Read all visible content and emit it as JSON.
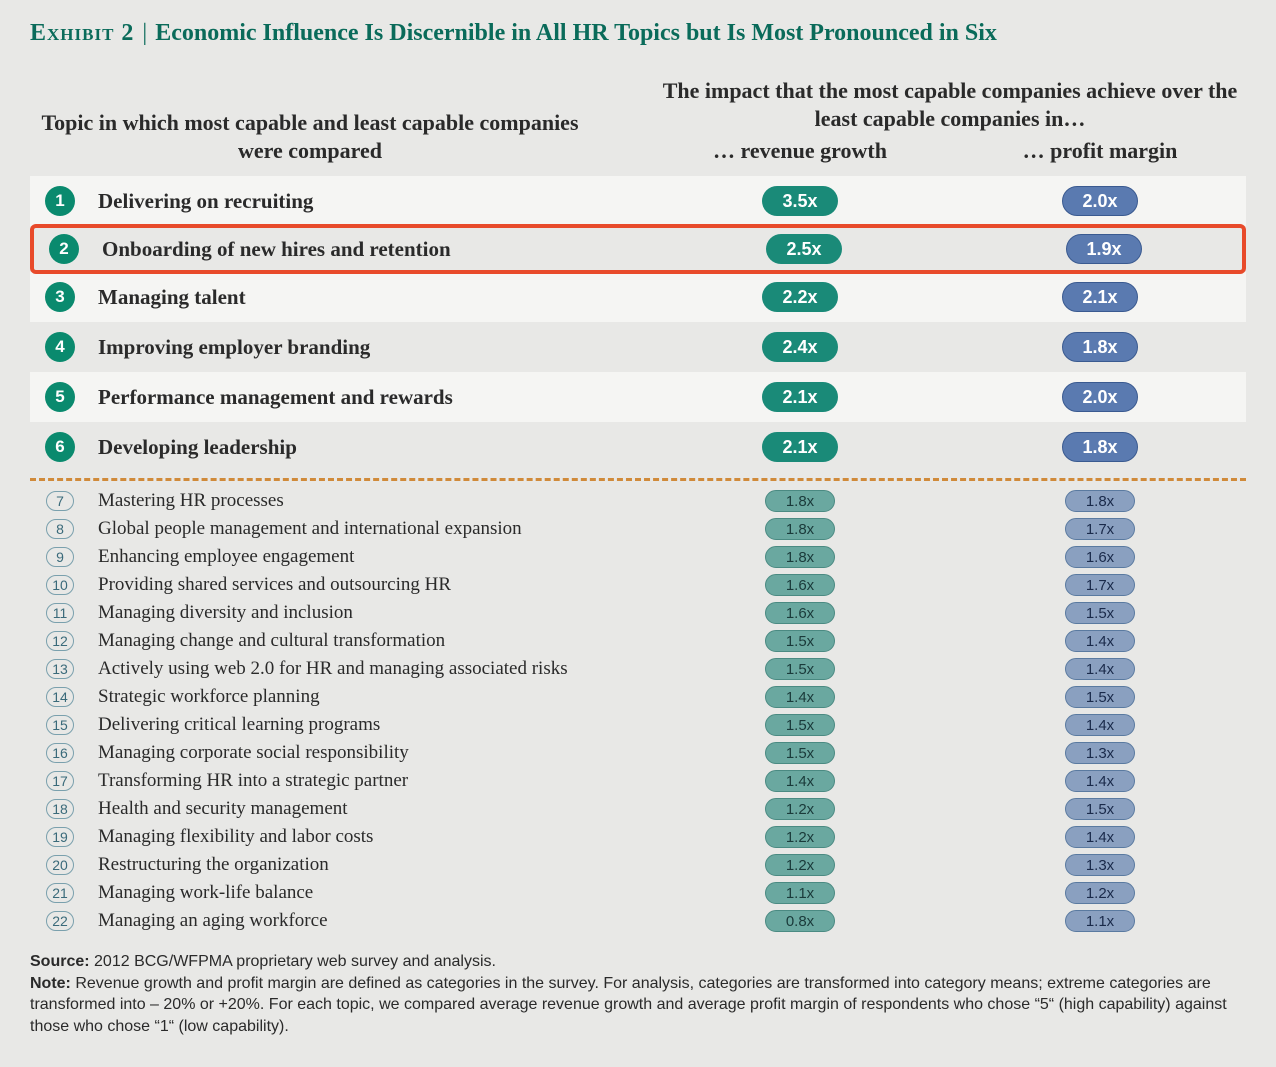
{
  "title": {
    "exhibit_label": "Exhibit 2",
    "text": "Economic Influence Is Discernible in All HR Topics but Is Most Pronounced in Six"
  },
  "headers": {
    "left": "Topic in which most capable and least capable companies were compared",
    "right_top": "The impact that the most capable companies achieve over the least capable companies in…",
    "sub_revenue": "… revenue growth",
    "sub_profit": "… profit margin"
  },
  "colors": {
    "brand_green": "#0a6b5a",
    "badge_green": "#0a8a6e",
    "pill_rev_major": "#1a8a78",
    "pill_rev_minor": "#6aa8a0",
    "pill_prof_major": "#5a7ab0",
    "pill_prof_minor": "#8aa0c0",
    "highlight_border": "#e84a2a",
    "divider": "#d08a3a",
    "row_alt_bg": "#f5f5f3",
    "page_bg": "#e8e8e6"
  },
  "highlight_index": 1,
  "divider_after_index": 5,
  "rows": [
    {
      "n": "1",
      "topic": "Delivering on recruiting",
      "rev": "3.5x",
      "prof": "2.0x",
      "major": true,
      "alt": true
    },
    {
      "n": "2",
      "topic": "Onboarding of new hires and retention",
      "rev": "2.5x",
      "prof": "1.9x",
      "major": true,
      "alt": false
    },
    {
      "n": "3",
      "topic": "Managing talent",
      "rev": "2.2x",
      "prof": "2.1x",
      "major": true,
      "alt": true
    },
    {
      "n": "4",
      "topic": "Improving employer branding",
      "rev": "2.4x",
      "prof": "1.8x",
      "major": true,
      "alt": false
    },
    {
      "n": "5",
      "topic": "Performance management and rewards",
      "rev": "2.1x",
      "prof": "2.0x",
      "major": true,
      "alt": true
    },
    {
      "n": "6",
      "topic": "Developing leadership",
      "rev": "2.1x",
      "prof": "1.8x",
      "major": true,
      "alt": false
    },
    {
      "n": "7",
      "topic": "Mastering HR processes",
      "rev": "1.8x",
      "prof": "1.8x",
      "major": false,
      "alt": false
    },
    {
      "n": "8",
      "topic": "Global people management and international expansion",
      "rev": "1.8x",
      "prof": "1.7x",
      "major": false,
      "alt": false
    },
    {
      "n": "9",
      "topic": "Enhancing employee engagement",
      "rev": "1.8x",
      "prof": "1.6x",
      "major": false,
      "alt": false
    },
    {
      "n": "10",
      "topic": "Providing shared services and outsourcing HR",
      "rev": "1.6x",
      "prof": "1.7x",
      "major": false,
      "alt": false
    },
    {
      "n": "11",
      "topic": "Managing diversity and inclusion",
      "rev": "1.6x",
      "prof": "1.5x",
      "major": false,
      "alt": false
    },
    {
      "n": "12",
      "topic": "Managing change and cultural transformation",
      "rev": "1.5x",
      "prof": "1.4x",
      "major": false,
      "alt": false
    },
    {
      "n": "13",
      "topic": "Actively using web 2.0 for HR and managing associated risks",
      "rev": "1.5x",
      "prof": "1.4x",
      "major": false,
      "alt": false
    },
    {
      "n": "14",
      "topic": "Strategic workforce planning",
      "rev": "1.4x",
      "prof": "1.5x",
      "major": false,
      "alt": false
    },
    {
      "n": "15",
      "topic": "Delivering critical learning programs",
      "rev": "1.5x",
      "prof": "1.4x",
      "major": false,
      "alt": false
    },
    {
      "n": "16",
      "topic": "Managing corporate social responsibility",
      "rev": "1.5x",
      "prof": "1.3x",
      "major": false,
      "alt": false
    },
    {
      "n": "17",
      "topic": "Transforming HR into a strategic partner",
      "rev": "1.4x",
      "prof": "1.4x",
      "major": false,
      "alt": false
    },
    {
      "n": "18",
      "topic": "Health and security management",
      "rev": "1.2x",
      "prof": "1.5x",
      "major": false,
      "alt": false
    },
    {
      "n": "19",
      "topic": "Managing flexibility and labor costs",
      "rev": "1.2x",
      "prof": "1.4x",
      "major": false,
      "alt": false
    },
    {
      "n": "20",
      "topic": "Restructuring the organization",
      "rev": "1.2x",
      "prof": "1.3x",
      "major": false,
      "alt": false
    },
    {
      "n": "21",
      "topic": "Managing work-life balance",
      "rev": "1.1x",
      "prof": "1.2x",
      "major": false,
      "alt": false
    },
    {
      "n": "22",
      "topic": "Managing an aging workforce",
      "rev": "0.8x",
      "prof": "1.1x",
      "major": false,
      "alt": false
    }
  ],
  "footer": {
    "source_label": "Source:",
    "source_text": "2012 BCG/WFPMA proprietary web survey and analysis.",
    "note_label": "Note:",
    "note_text": "Revenue growth and profit margin are defined as categories in the survey. For analysis, categories are transformed into category means; extreme categories are transformed into – 20% or +20%. For each topic, we compared average revenue growth and average profit margin of respondents who chose “5“ (high capability) against those who chose “1“ (low capability)."
  }
}
